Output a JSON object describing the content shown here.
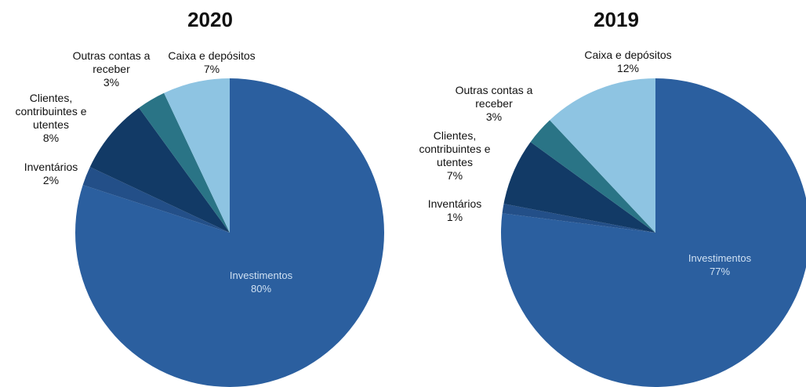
{
  "chart_data": [
    {
      "type": "pie",
      "title": "2020",
      "categories": [
        "Investimentos",
        "Inventários",
        "Clientes, contribuintes e utentes",
        "Outras contas a receber",
        "Caixa e depósitos"
      ],
      "values": [
        80,
        2,
        8,
        3,
        7
      ],
      "value_labels": [
        "80%",
        "2%",
        "8%",
        "3%",
        "7%"
      ],
      "colors": [
        "#2b5f9f",
        "#234f88",
        "#123a66",
        "#2a7486",
        "#8ec4e2"
      ]
    },
    {
      "type": "pie",
      "title": "2019",
      "categories": [
        "Investimentos",
        "Inventários",
        "Clientes, contribuintes e utentes",
        "Outras contas a receber",
        "Caixa e depósitos"
      ],
      "values": [
        77,
        1,
        7,
        3,
        12
      ],
      "value_labels": [
        "77%",
        "1%",
        "7%",
        "3%",
        "12%"
      ],
      "colors": [
        "#2b5f9f",
        "#234f88",
        "#123a66",
        "#2a7486",
        "#8ec4e2"
      ]
    }
  ]
}
